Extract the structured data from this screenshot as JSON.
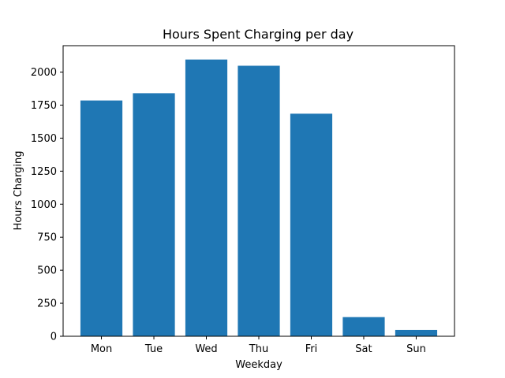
{
  "chart_data": {
    "type": "bar",
    "title": "Hours Spent Charging per day",
    "xlabel": "Weekday",
    "ylabel": "Hours Charging",
    "categories": [
      "Mon",
      "Tue",
      "Wed",
      "Thu",
      "Fri",
      "Sat",
      "Sun"
    ],
    "values": [
      1785,
      1840,
      2095,
      2048,
      1685,
      145,
      48
    ],
    "ylim": [
      0,
      2200
    ],
    "yticks": [
      0,
      250,
      500,
      750,
      1000,
      1250,
      1500,
      1750,
      2000
    ],
    "ytick_labels": [
      "0",
      "250",
      "500",
      "750",
      "1000",
      "1250",
      "1500",
      "1750",
      "2000"
    ],
    "bar_color": "#1f77b4",
    "grid": false,
    "legend": false
  }
}
